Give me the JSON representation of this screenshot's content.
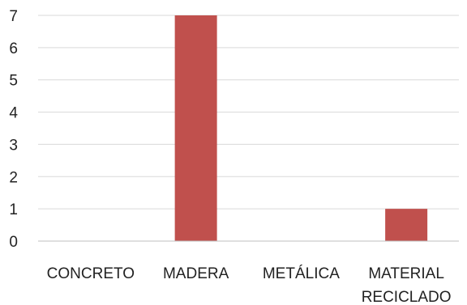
{
  "chart_data": {
    "type": "bar",
    "categories": [
      [
        "CONCRETO"
      ],
      [
        "MADERA"
      ],
      [
        "METÁLICA"
      ],
      [
        "MATERIAL",
        "RECICLADO"
      ]
    ],
    "values": [
      0,
      7,
      0,
      1
    ],
    "title": "",
    "xlabel": "",
    "ylabel": "",
    "ylim": [
      0,
      7
    ],
    "yticks": [
      "0",
      "1",
      "2",
      "3",
      "4",
      "5",
      "6",
      "7"
    ],
    "grid": true,
    "legend": "none",
    "colors": {
      "bar": "#c0504d",
      "grid": "#d9d9d9",
      "axis": "#bfbfbf",
      "text": "#222222"
    }
  }
}
